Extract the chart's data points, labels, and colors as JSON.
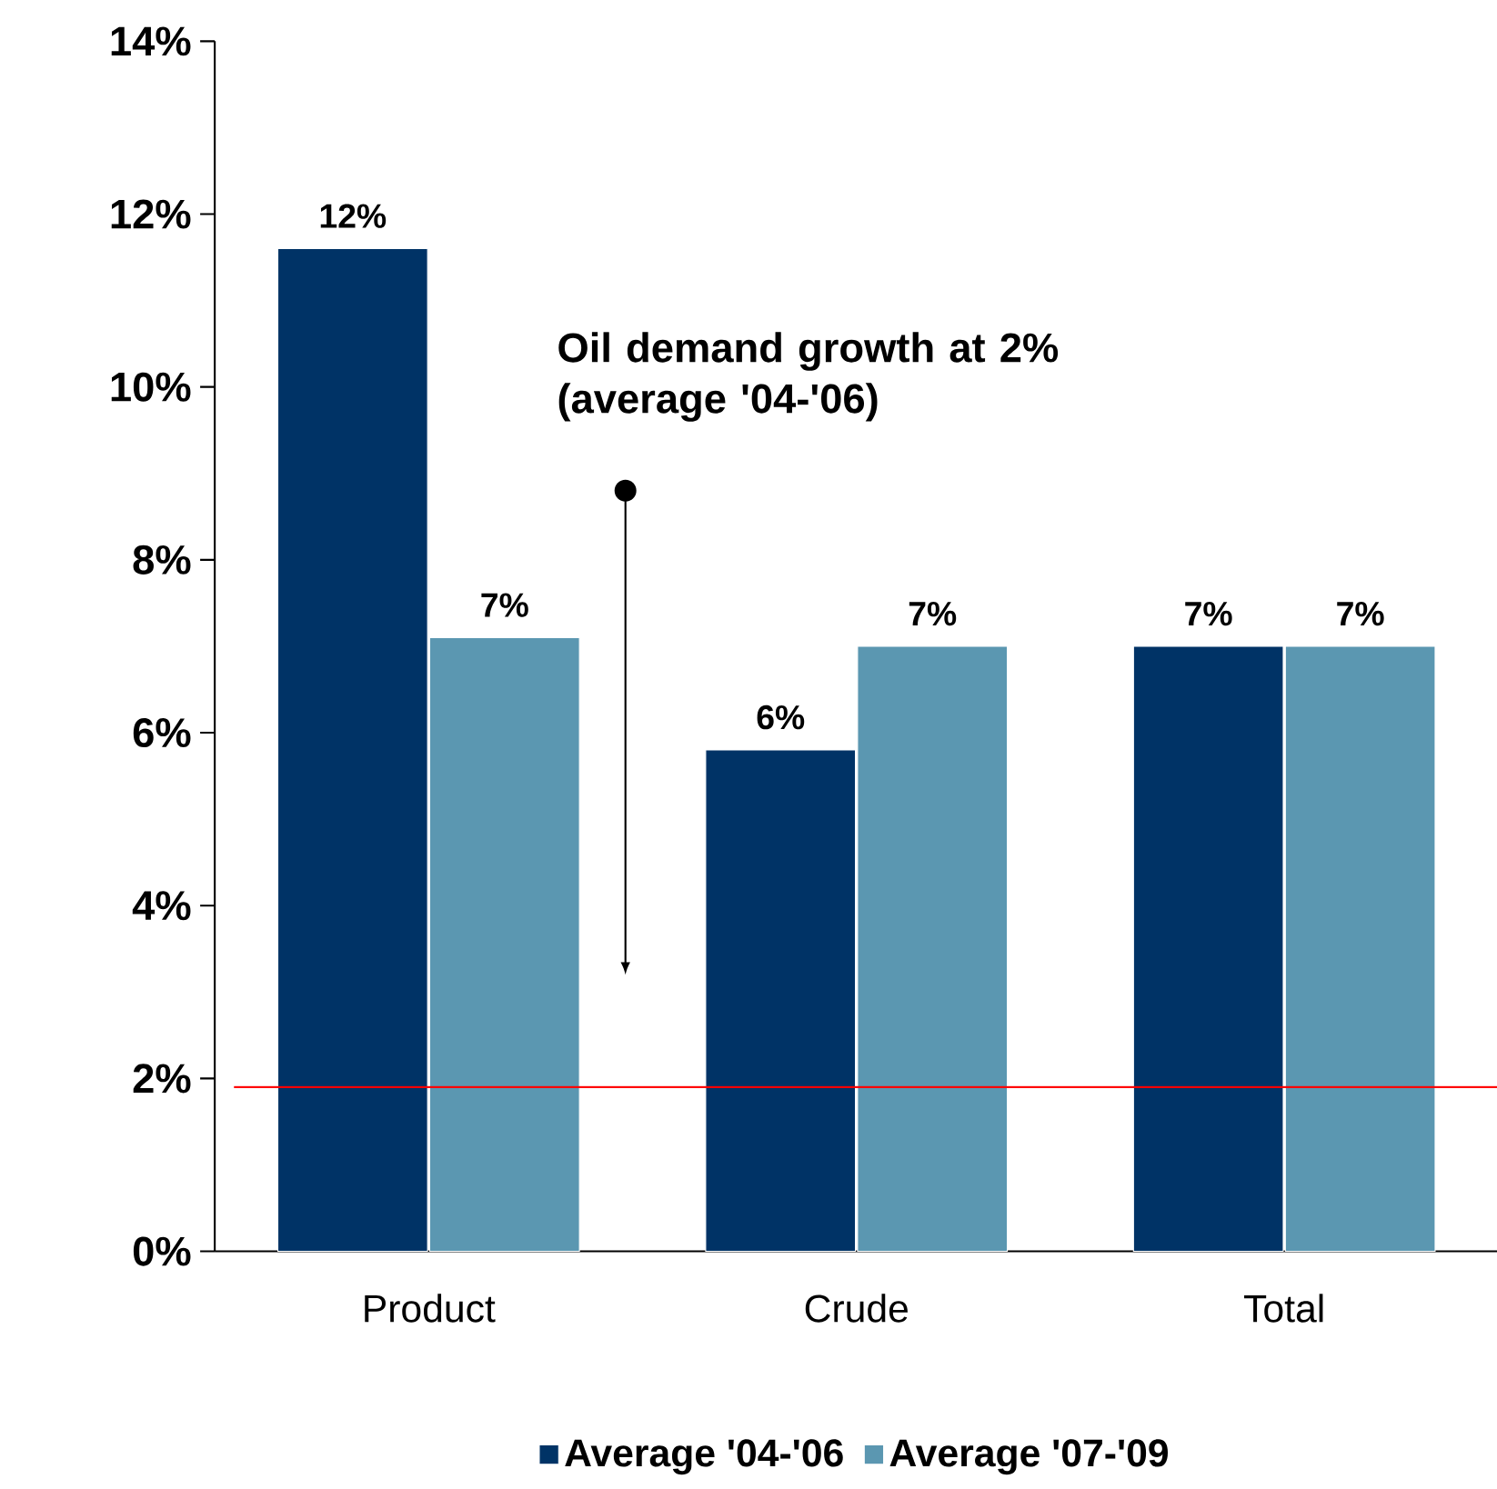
{
  "chart_data": {
    "type": "bar",
    "categories": [
      "Product",
      "Crude",
      "Total"
    ],
    "series": [
      {
        "name": "Average '04-'06",
        "color": "#003366",
        "values": [
          11.6,
          5.8,
          7.0
        ],
        "value_labels": [
          "12%",
          "6%",
          "7%"
        ]
      },
      {
        "name": "Average '07-'09",
        "color": "#5b97b1",
        "values": [
          7.1,
          7.0,
          7.0
        ],
        "value_labels": [
          "7%",
          "7%",
          "7%"
        ]
      }
    ],
    "ylim": [
      0,
      14
    ],
    "yticks": [
      {
        "value": 0,
        "label": "0%"
      },
      {
        "value": 2,
        "label": "2%"
      },
      {
        "value": 4,
        "label": "4%"
      },
      {
        "value": 6,
        "label": "6%"
      },
      {
        "value": 8,
        "label": "8%"
      },
      {
        "value": 10,
        "label": "10%"
      },
      {
        "value": 12,
        "label": "12%"
      },
      {
        "value": 14,
        "label": "14%"
      }
    ],
    "ref_lines": [
      {
        "axis": "y",
        "value": 1.9,
        "color": "#ff0000"
      }
    ],
    "annotations": [
      "Oil demand growth at 2% (average '04-'06)"
    ],
    "legend": "bottom",
    "grid": false
  }
}
